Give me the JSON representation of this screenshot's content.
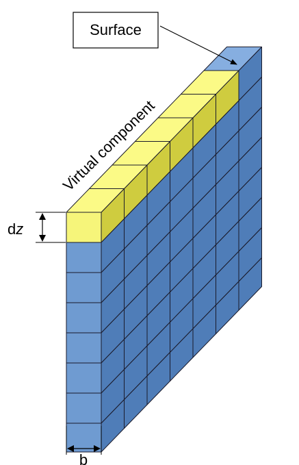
{
  "labels": {
    "surface": "Surface",
    "virtual_component": "Virtual component",
    "dz_d": "d",
    "dz_z": "z",
    "b": "b"
  },
  "colors": {
    "blue_front": "#6f9bd1",
    "blue_side": "#4f7db8",
    "blue_top": "#86aee0",
    "yellow_front": "#f6f57a",
    "yellow_side": "#cfcc3f",
    "yellow_top": "#fbfa86",
    "stroke": "#1a1a2a"
  },
  "grid": {
    "rows": 7,
    "columns": 7,
    "virtual_layer_columns": 6
  }
}
